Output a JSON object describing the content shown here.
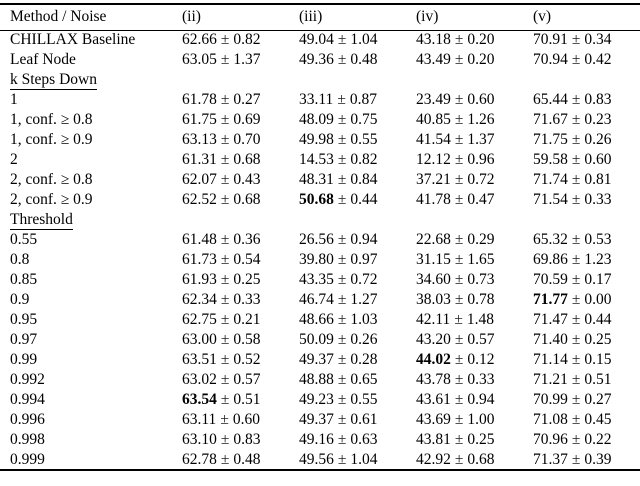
{
  "page": {
    "background": "#ffffff",
    "text_color": "#000000",
    "rule_color": "#000000"
  },
  "table": {
    "pm_symbol": "±",
    "columns": [
      "Method / Noise",
      "(ii)",
      "(iii)",
      "(iv)",
      "(v)"
    ],
    "rows": [
      {
        "type": "data",
        "label": "CHILLAX Baseline",
        "cells": [
          {
            "v": "62.66",
            "e": "0.82",
            "b": false
          },
          {
            "v": "49.04",
            "e": "1.04",
            "b": false
          },
          {
            "v": "43.18",
            "e": "0.20",
            "b": false
          },
          {
            "v": "70.91",
            "e": "0.34",
            "b": false
          }
        ]
      },
      {
        "type": "data",
        "label": "Leaf Node",
        "cells": [
          {
            "v": "63.05",
            "e": "1.37",
            "b": false
          },
          {
            "v": "49.36",
            "e": "0.48",
            "b": false
          },
          {
            "v": "43.49",
            "e": "0.20",
            "b": false
          },
          {
            "v": "70.94",
            "e": "0.42",
            "b": false
          }
        ]
      },
      {
        "type": "section",
        "label": "k Steps Down"
      },
      {
        "type": "data",
        "label": "1",
        "cells": [
          {
            "v": "61.78",
            "e": "0.27",
            "b": false
          },
          {
            "v": "33.11",
            "e": "0.87",
            "b": false
          },
          {
            "v": "23.49",
            "e": "0.60",
            "b": false
          },
          {
            "v": "65.44",
            "e": "0.83",
            "b": false
          }
        ]
      },
      {
        "type": "data",
        "label": "1, conf. ≥ 0.8",
        "cells": [
          {
            "v": "61.75",
            "e": "0.69",
            "b": false
          },
          {
            "v": "48.09",
            "e": "0.75",
            "b": false
          },
          {
            "v": "40.85",
            "e": "1.26",
            "b": false
          },
          {
            "v": "71.67",
            "e": "0.23",
            "b": false
          }
        ]
      },
      {
        "type": "data",
        "label": "1, conf. ≥ 0.9",
        "cells": [
          {
            "v": "63.13",
            "e": "0.70",
            "b": false
          },
          {
            "v": "49.98",
            "e": "0.55",
            "b": false
          },
          {
            "v": "41.54",
            "e": "1.37",
            "b": false
          },
          {
            "v": "71.75",
            "e": "0.26",
            "b": false
          }
        ]
      },
      {
        "type": "data",
        "label": "2",
        "cells": [
          {
            "v": "61.31",
            "e": "0.68",
            "b": false
          },
          {
            "v": "14.53",
            "e": "0.82",
            "b": false
          },
          {
            "v": "12.12",
            "e": "0.96",
            "b": false
          },
          {
            "v": "59.58",
            "e": "0.60",
            "b": false
          }
        ]
      },
      {
        "type": "data",
        "label": "2, conf. ≥ 0.8",
        "cells": [
          {
            "v": "62.07",
            "e": "0.43",
            "b": false
          },
          {
            "v": "48.31",
            "e": "0.84",
            "b": false
          },
          {
            "v": "37.21",
            "e": "0.72",
            "b": false
          },
          {
            "v": "71.74",
            "e": "0.81",
            "b": false
          }
        ]
      },
      {
        "type": "data",
        "label": "2, conf. ≥ 0.9",
        "cells": [
          {
            "v": "62.52",
            "e": "0.68",
            "b": false
          },
          {
            "v": "50.68",
            "e": "0.44",
            "b": true
          },
          {
            "v": "41.78",
            "e": "0.47",
            "b": false
          },
          {
            "v": "71.54",
            "e": "0.33",
            "b": false
          }
        ]
      },
      {
        "type": "section",
        "label": "Threshold"
      },
      {
        "type": "data",
        "label": "0.55",
        "cells": [
          {
            "v": "61.48",
            "e": "0.36",
            "b": false
          },
          {
            "v": "26.56",
            "e": "0.94",
            "b": false
          },
          {
            "v": "22.68",
            "e": "0.29",
            "b": false
          },
          {
            "v": "65.32",
            "e": "0.53",
            "b": false
          }
        ]
      },
      {
        "type": "data",
        "label": "0.8",
        "cells": [
          {
            "v": "61.73",
            "e": "0.54",
            "b": false
          },
          {
            "v": "39.80",
            "e": "0.97",
            "b": false
          },
          {
            "v": "31.15",
            "e": "1.65",
            "b": false
          },
          {
            "v": "69.86",
            "e": "1.23",
            "b": false
          }
        ]
      },
      {
        "type": "data",
        "label": "0.85",
        "cells": [
          {
            "v": "61.93",
            "e": "0.25",
            "b": false
          },
          {
            "v": "43.35",
            "e": "0.72",
            "b": false
          },
          {
            "v": "34.60",
            "e": "0.73",
            "b": false
          },
          {
            "v": "70.59",
            "e": "0.17",
            "b": false
          }
        ]
      },
      {
        "type": "data",
        "label": "0.9",
        "cells": [
          {
            "v": "62.34",
            "e": "0.33",
            "b": false
          },
          {
            "v": "46.74",
            "e": "1.27",
            "b": false
          },
          {
            "v": "38.03",
            "e": "0.78",
            "b": false
          },
          {
            "v": "71.77",
            "e": "0.00",
            "b": true
          }
        ]
      },
      {
        "type": "data",
        "label": "0.95",
        "cells": [
          {
            "v": "62.75",
            "e": "0.21",
            "b": false
          },
          {
            "v": "48.66",
            "e": "1.03",
            "b": false
          },
          {
            "v": "42.11",
            "e": "1.48",
            "b": false
          },
          {
            "v": "71.47",
            "e": "0.44",
            "b": false
          }
        ]
      },
      {
        "type": "data",
        "label": "0.97",
        "cells": [
          {
            "v": "63.00",
            "e": "0.58",
            "b": false
          },
          {
            "v": "50.09",
            "e": "0.26",
            "b": false
          },
          {
            "v": "43.20",
            "e": "0.57",
            "b": false
          },
          {
            "v": "71.40",
            "e": "0.25",
            "b": false
          }
        ]
      },
      {
        "type": "data",
        "label": "0.99",
        "cells": [
          {
            "v": "63.51",
            "e": "0.52",
            "b": false
          },
          {
            "v": "49.37",
            "e": "0.28",
            "b": false
          },
          {
            "v": "44.02",
            "e": "0.12",
            "b": true
          },
          {
            "v": "71.14",
            "e": "0.15",
            "b": false
          }
        ]
      },
      {
        "type": "data",
        "label": "0.992",
        "cells": [
          {
            "v": "63.02",
            "e": "0.57",
            "b": false
          },
          {
            "v": "48.88",
            "e": "0.65",
            "b": false
          },
          {
            "v": "43.78",
            "e": "0.33",
            "b": false
          },
          {
            "v": "71.21",
            "e": "0.51",
            "b": false
          }
        ]
      },
      {
        "type": "data",
        "label": "0.994",
        "cells": [
          {
            "v": "63.54",
            "e": "0.51",
            "b": true
          },
          {
            "v": "49.23",
            "e": "0.55",
            "b": false
          },
          {
            "v": "43.61",
            "e": "0.94",
            "b": false
          },
          {
            "v": "70.99",
            "e": "0.27",
            "b": false
          }
        ]
      },
      {
        "type": "data",
        "label": "0.996",
        "cells": [
          {
            "v": "63.11",
            "e": "0.60",
            "b": false
          },
          {
            "v": "49.37",
            "e": "0.61",
            "b": false
          },
          {
            "v": "43.69",
            "e": "1.00",
            "b": false
          },
          {
            "v": "71.08",
            "e": "0.45",
            "b": false
          }
        ]
      },
      {
        "type": "data",
        "label": "0.998",
        "cells": [
          {
            "v": "63.10",
            "e": "0.83",
            "b": false
          },
          {
            "v": "49.16",
            "e": "0.63",
            "b": false
          },
          {
            "v": "43.81",
            "e": "0.25",
            "b": false
          },
          {
            "v": "70.96",
            "e": "0.22",
            "b": false
          }
        ]
      },
      {
        "type": "data",
        "label": "0.999",
        "cells": [
          {
            "v": "62.78",
            "e": "0.48",
            "b": false
          },
          {
            "v": "49.56",
            "e": "1.04",
            "b": false
          },
          {
            "v": "42.92",
            "e": "0.68",
            "b": false
          },
          {
            "v": "71.37",
            "e": "0.39",
            "b": false
          }
        ]
      }
    ]
  }
}
